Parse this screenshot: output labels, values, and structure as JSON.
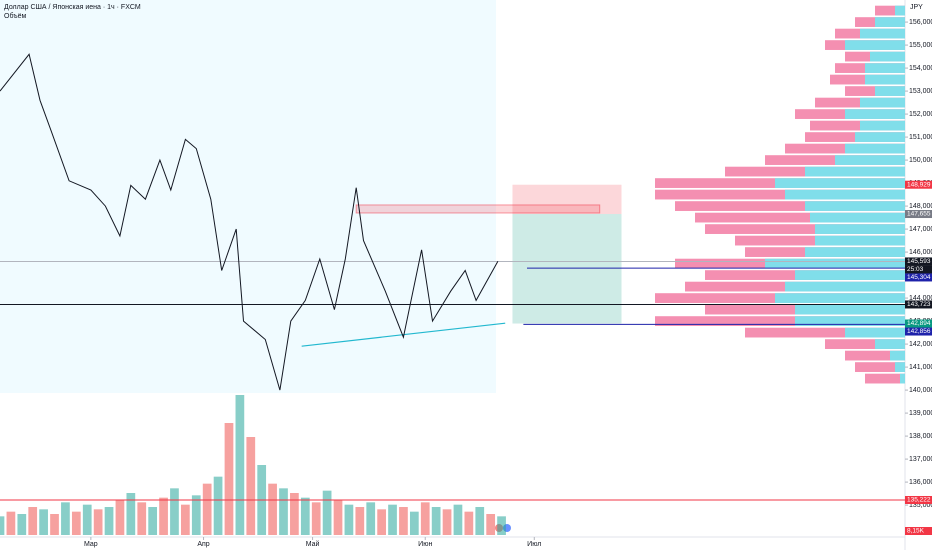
{
  "header": {
    "title": "Доллар США / Японская иена · 1ч · FXCM",
    "indicator": "Объём",
    "currency": "JPY",
    "volume_tag": "8,15K"
  },
  "chart_data": {
    "type": "line",
    "color": "#131722",
    "x": [
      -25,
      -17,
      -14,
      -11,
      -6,
      0,
      4,
      8,
      11,
      15,
      19,
      22,
      26,
      29,
      33,
      36,
      40,
      42,
      48,
      52,
      55,
      59,
      63,
      67,
      70,
      73,
      75,
      81,
      86,
      91,
      94,
      99,
      103,
      106,
      112
    ],
    "values": [
      153.0,
      154.6,
      152.6,
      151.3,
      149.1,
      148.7,
      148.0,
      146.7,
      148.9,
      148.3,
      150.0,
      148.7,
      150.9,
      150.5,
      148.3,
      145.2,
      147.0,
      143.0,
      142.2,
      140.0,
      143.0,
      143.9,
      145.7,
      143.5,
      145.7,
      148.8,
      146.5,
      144.3,
      142.3,
      146.1,
      143.0,
      144.3,
      145.2,
      143.9,
      145.6
    ],
    "xlim": [
      -25,
      224
    ],
    "xticks": [
      {
        "value": 0,
        "label": "Мар"
      },
      {
        "value": 31,
        "label": "Апр"
      },
      {
        "value": 61,
        "label": "Май"
      },
      {
        "value": 92,
        "label": "Июн"
      },
      {
        "value": 122,
        "label": "Июл"
      }
    ],
    "ylim": [
      133.7,
      156.96
    ],
    "yticks": [
      {
        "value": 135,
        "label": "135,000"
      },
      {
        "value": 136,
        "label": "136,000"
      },
      {
        "value": 137,
        "label": "137,000"
      },
      {
        "value": 138,
        "label": "138,000"
      },
      {
        "value": 139,
        "label": "139,000"
      },
      {
        "value": 140,
        "label": "140,000"
      },
      {
        "value": 141,
        "label": "141,000"
      },
      {
        "value": 142,
        "label": "142,000"
      },
      {
        "value": 143,
        "label": "143,000"
      },
      {
        "value": 144,
        "label": "144,000"
      },
      {
        "value": 145,
        "label": "145,000"
      },
      {
        "value": 146,
        "label": "146,000"
      },
      {
        "value": 147,
        "label": "147,000"
      },
      {
        "value": 148,
        "label": "148,000"
      },
      {
        "value": 149,
        "label": "149,000"
      },
      {
        "value": 150,
        "label": "150,000"
      },
      {
        "value": 151,
        "label": "151,000"
      },
      {
        "value": 152,
        "label": "152,000"
      },
      {
        "value": 153,
        "label": "153,000"
      },
      {
        "value": 154,
        "label": "154,000"
      },
      {
        "value": 155,
        "label": "155,000"
      },
      {
        "value": 156,
        "label": "156,000"
      }
    ],
    "levels": [
      {
        "value": 148.929,
        "label": "148,929",
        "color": "#f23645"
      },
      {
        "value": 147.655,
        "label": "147,655",
        "color": "#787b86"
      },
      {
        "value": 145.593,
        "label": "145,593",
        "color": "#131722",
        "timer": "25:03",
        "from": -25,
        "line_color": "#b2b5be"
      },
      {
        "value": 145.304,
        "label": "145,304",
        "color": "#1e22aa",
        "from": 120
      },
      {
        "value": 143.723,
        "label": "143,723",
        "color": "#131722",
        "from": -25
      },
      {
        "value": 142.894,
        "label": "142,894",
        "color": "#089981"
      },
      {
        "value": 142.856,
        "label": "142,856",
        "color": "#1e22aa",
        "from": 119
      },
      {
        "value": 135.222,
        "label": "135,222",
        "color": "#f23645",
        "from": -25
      }
    ],
    "zone": {
      "x": [
        73,
        140
      ],
      "y": [
        147.7,
        148.05
      ],
      "color": "#f23645"
    },
    "position": {
      "x": [
        116,
        146
      ],
      "entry": 147.655,
      "stop": 148.929,
      "target": 142.894
    },
    "trend_line": {
      "x": [
        58,
        114
      ],
      "y": [
        141.91,
        142.91
      ],
      "color": "#22b8cf"
    },
    "volume": {
      "x": [
        -25,
        -22,
        -19,
        -16,
        -13,
        -10,
        -7,
        -4,
        -1,
        2,
        5,
        8,
        11,
        14,
        17,
        20,
        23,
        26,
        29,
        32,
        35,
        38,
        41,
        44,
        47,
        50,
        53,
        56,
        59,
        62,
        65,
        68,
        71,
        74,
        77,
        80,
        83,
        86,
        89,
        92,
        95,
        98,
        101,
        104,
        107,
        110,
        113
      ],
      "values": [
        8,
        10,
        9,
        12,
        11,
        9,
        14,
        10,
        13,
        11,
        12,
        15,
        18,
        14,
        12,
        16,
        20,
        13,
        17,
        22,
        25,
        48,
        60,
        42,
        30,
        22,
        20,
        18,
        16,
        14,
        19,
        15,
        13,
        12,
        14,
        11,
        13,
        12,
        10,
        14,
        12,
        11,
        13,
        10,
        12,
        9,
        8
      ],
      "colors": [
        "#26a69a",
        "#ef5350"
      ]
    },
    "volume_profile": {
      "prices": [
        140.5,
        141,
        141.5,
        142,
        142.5,
        143,
        143.5,
        144,
        144.5,
        145,
        145.5,
        146,
        146.5,
        147,
        147.5,
        148,
        148.5,
        149,
        149.5,
        150,
        150.5,
        151,
        151.5,
        152,
        152.5,
        153,
        153.5,
        154,
        154.5,
        155,
        155.5,
        156,
        156.5
      ],
      "total": [
        40,
        50,
        60,
        80,
        160,
        250,
        200,
        250,
        220,
        200,
        230,
        160,
        170,
        200,
        210,
        230,
        250,
        250,
        180,
        140,
        120,
        100,
        95,
        110,
        90,
        60,
        75,
        70,
        60,
        80,
        70,
        50,
        30
      ],
      "up": [
        5,
        10,
        15,
        30,
        60,
        110,
        110,
        130,
        120,
        110,
        140,
        100,
        90,
        90,
        95,
        100,
        120,
        130,
        100,
        70,
        60,
        50,
        45,
        60,
        45,
        30,
        40,
        40,
        35,
        60,
        45,
        30,
        10
      ],
      "colors": [
        "#f48fb1",
        "#80deea"
      ]
    }
  }
}
